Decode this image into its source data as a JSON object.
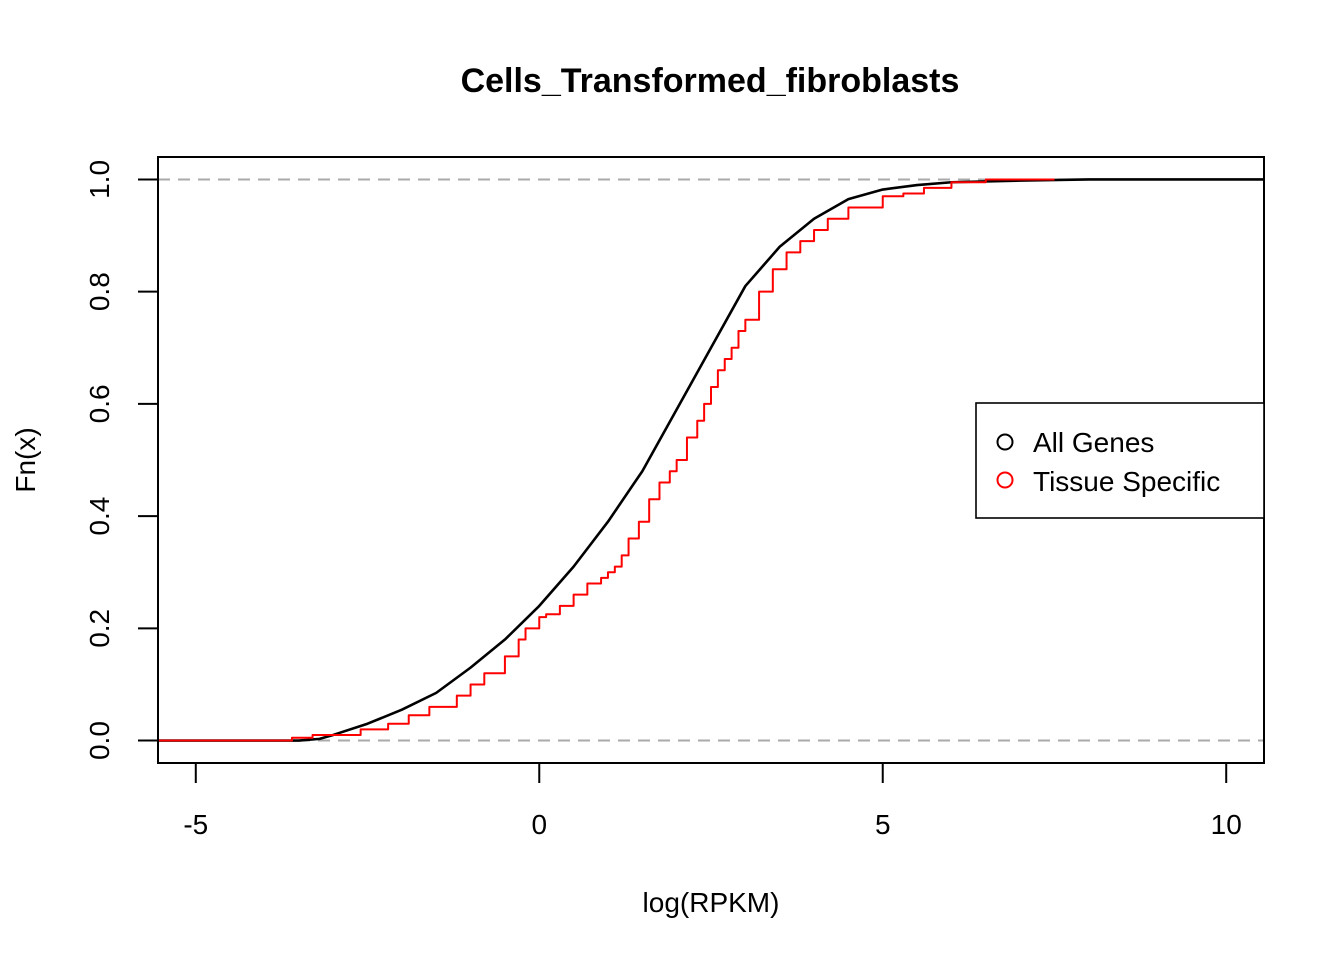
{
  "chart_data": {
    "type": "line",
    "title": "Cells_Transformed_fibroblasts",
    "xlabel": "log(RPKM)",
    "ylabel": "Fn(x)",
    "xlim": [
      -5.55,
      10.55
    ],
    "ylim": [
      -0.04,
      1.04
    ],
    "x_ticks": [
      -5,
      0,
      5,
      10
    ],
    "x_tick_labels": [
      "-5",
      "0",
      "5",
      "10"
    ],
    "y_ticks": [
      0.0,
      0.2,
      0.4,
      0.6,
      0.8,
      1.0
    ],
    "y_tick_labels": [
      "0.0",
      "0.2",
      "0.4",
      "0.6",
      "0.8",
      "1.0"
    ],
    "reference_lines": [
      0,
      1
    ],
    "reference_line_color": "#aaaaaa",
    "grid": false,
    "legend": {
      "position": "right",
      "marker": "circle-open",
      "entries": [
        {
          "label": "All Genes",
          "color": "#000000"
        },
        {
          "label": "Tissue Specific",
          "color": "#ff0000"
        }
      ]
    },
    "series": [
      {
        "name": "All Genes",
        "color": "#000000",
        "style": "smooth-ecdf",
        "x": [
          -5.55,
          -3.5,
          -3.2,
          -3.0,
          -2.5,
          -2.0,
          -1.5,
          -1.0,
          -0.5,
          0.0,
          0.5,
          1.0,
          1.5,
          2.0,
          2.5,
          3.0,
          3.5,
          4.0,
          4.5,
          5.0,
          5.5,
          6.0,
          7.0,
          8.0,
          10.55
        ],
        "y": [
          0.0,
          0.0,
          0.003,
          0.01,
          0.03,
          0.055,
          0.085,
          0.13,
          0.18,
          0.24,
          0.31,
          0.39,
          0.48,
          0.59,
          0.7,
          0.81,
          0.88,
          0.93,
          0.965,
          0.982,
          0.99,
          0.995,
          0.998,
          1.0,
          1.0
        ]
      },
      {
        "name": "Tissue Specific",
        "color": "#ff0000",
        "style": "step-ecdf",
        "x": [
          -5.0,
          -3.6,
          -3.3,
          -2.6,
          -2.2,
          -1.9,
          -1.6,
          -1.2,
          -1.0,
          -0.8,
          -0.5,
          -0.3,
          -0.2,
          0.0,
          0.1,
          0.3,
          0.5,
          0.7,
          0.9,
          1.0,
          1.1,
          1.2,
          1.3,
          1.45,
          1.6,
          1.75,
          1.9,
          2.0,
          2.15,
          2.3,
          2.4,
          2.5,
          2.6,
          2.7,
          2.8,
          2.9,
          3.0,
          3.2,
          3.4,
          3.6,
          3.8,
          4.0,
          4.2,
          4.5,
          5.0,
          5.3,
          5.6,
          6.0,
          6.5,
          7.0,
          7.5
        ],
        "y": [
          0.0,
          0.005,
          0.01,
          0.02,
          0.03,
          0.045,
          0.06,
          0.08,
          0.1,
          0.12,
          0.15,
          0.18,
          0.2,
          0.22,
          0.225,
          0.24,
          0.26,
          0.28,
          0.29,
          0.3,
          0.31,
          0.33,
          0.36,
          0.39,
          0.43,
          0.46,
          0.48,
          0.5,
          0.54,
          0.57,
          0.6,
          0.63,
          0.66,
          0.68,
          0.7,
          0.73,
          0.75,
          0.8,
          0.84,
          0.87,
          0.89,
          0.91,
          0.93,
          0.95,
          0.97,
          0.975,
          0.985,
          0.995,
          1.0,
          1.0,
          1.0
        ]
      }
    ]
  }
}
